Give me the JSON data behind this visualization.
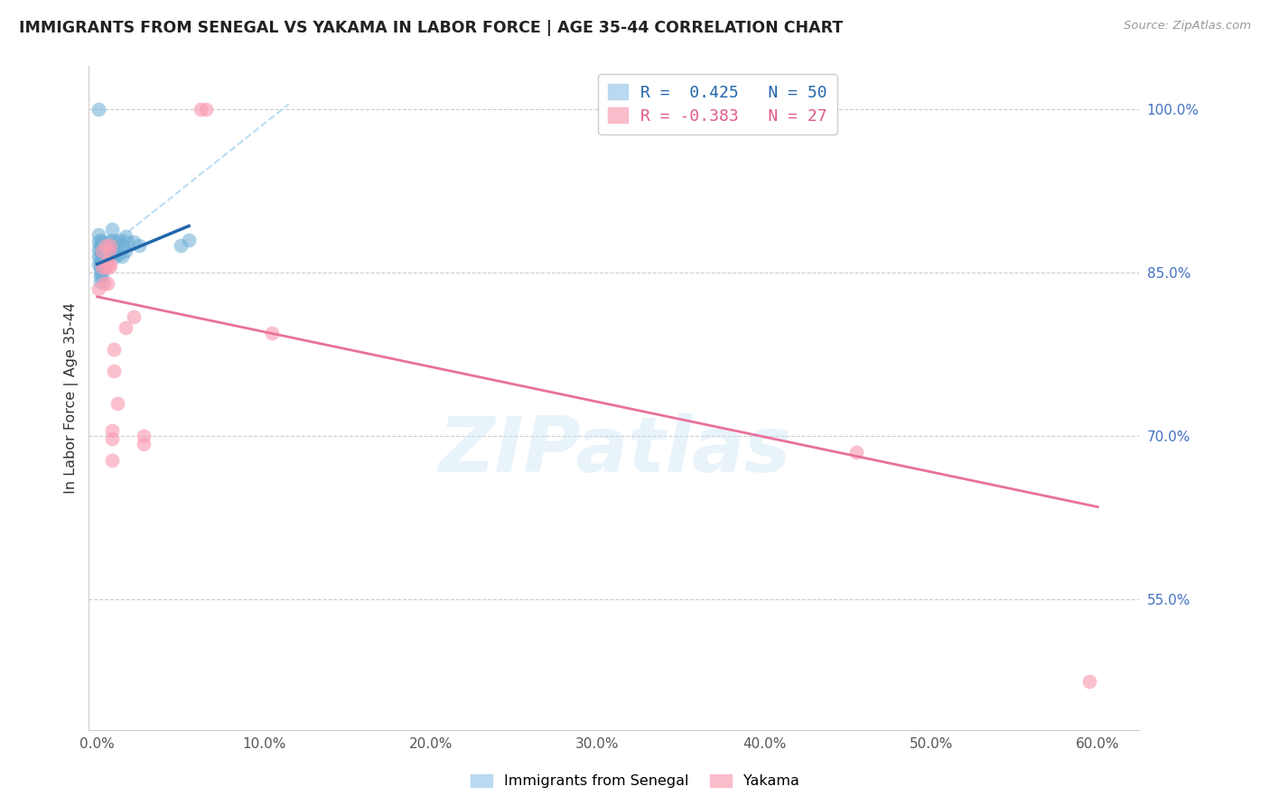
{
  "title": "IMMIGRANTS FROM SENEGAL VS YAKAMA IN LABOR FORCE | AGE 35-44 CORRELATION CHART",
  "source": "Source: ZipAtlas.com",
  "ylabel": "In Labor Force | Age 35-44",
  "xlabel_ticks": [
    "0.0%",
    "10.0%",
    "20.0%",
    "30.0%",
    "40.0%",
    "50.0%",
    "60.0%"
  ],
  "xlabel_vals": [
    0.0,
    0.1,
    0.2,
    0.3,
    0.4,
    0.5,
    0.6
  ],
  "ylabel_ticks_right": [
    "100.0%",
    "85.0%",
    "70.0%",
    "55.0%"
  ],
  "ylabel_vals_right": [
    1.0,
    0.85,
    0.7,
    0.55
  ],
  "xlim": [
    -0.005,
    0.625
  ],
  "ylim": [
    0.43,
    1.04
  ],
  "R_blue": 0.425,
  "N_blue": 50,
  "R_pink": -0.383,
  "N_pink": 27,
  "legend_labels": [
    "Immigrants from Senegal",
    "Yakama"
  ],
  "blue_color": "#6baed6",
  "blue_line_color": "#2166ac",
  "pink_color": "#fa9fb5",
  "pink_line_color": "#e8719a",
  "watermark": "ZIPatlas",
  "blue_scatter_x": [
    0.001,
    0.001,
    0.001,
    0.001,
    0.001,
    0.001,
    0.002,
    0.002,
    0.002,
    0.002,
    0.002,
    0.002,
    0.002,
    0.002,
    0.002,
    0.003,
    0.003,
    0.003,
    0.003,
    0.003,
    0.003,
    0.003,
    0.004,
    0.004,
    0.004,
    0.005,
    0.005,
    0.006,
    0.006,
    0.006,
    0.007,
    0.008,
    0.009,
    0.009,
    0.009,
    0.01,
    0.01,
    0.011,
    0.011,
    0.013,
    0.013,
    0.015,
    0.015,
    0.017,
    0.017,
    0.018,
    0.022,
    0.025,
    0.05,
    0.055
  ],
  "blue_scatter_y": [
    1.0,
    0.885,
    0.878,
    0.872,
    0.865,
    0.858,
    0.88,
    0.875,
    0.87,
    0.865,
    0.86,
    0.856,
    0.851,
    0.847,
    0.842,
    0.878,
    0.873,
    0.868,
    0.863,
    0.858,
    0.853,
    0.848,
    0.872,
    0.867,
    0.862,
    0.875,
    0.86,
    0.87,
    0.865,
    0.86,
    0.878,
    0.873,
    0.89,
    0.88,
    0.868,
    0.872,
    0.868,
    0.878,
    0.865,
    0.88,
    0.868,
    0.875,
    0.865,
    0.883,
    0.87,
    0.878,
    0.878,
    0.875,
    0.875,
    0.88
  ],
  "pink_scatter_x": [
    0.001,
    0.003,
    0.003,
    0.004,
    0.005,
    0.005,
    0.006,
    0.006,
    0.007,
    0.007,
    0.008,
    0.008,
    0.009,
    0.009,
    0.009,
    0.01,
    0.01,
    0.012,
    0.017,
    0.022,
    0.028,
    0.028,
    0.062,
    0.065,
    0.105,
    0.455,
    0.595
  ],
  "pink_scatter_y": [
    0.835,
    0.87,
    0.855,
    0.84,
    0.875,
    0.855,
    0.86,
    0.84,
    0.87,
    0.855,
    0.875,
    0.858,
    0.705,
    0.698,
    0.678,
    0.78,
    0.76,
    0.73,
    0.8,
    0.81,
    0.7,
    0.693,
    1.0,
    1.0,
    0.795,
    0.685,
    0.475
  ],
  "blue_trendline_x": [
    0.0,
    0.055
  ],
  "blue_trendline_y": [
    0.858,
    0.893
  ],
  "blue_ref_line_x": [
    0.0,
    0.115
  ],
  "blue_ref_line_y": [
    0.865,
    1.005
  ],
  "pink_trendline_x": [
    0.0,
    0.6
  ],
  "pink_trendline_y": [
    0.828,
    0.635
  ]
}
